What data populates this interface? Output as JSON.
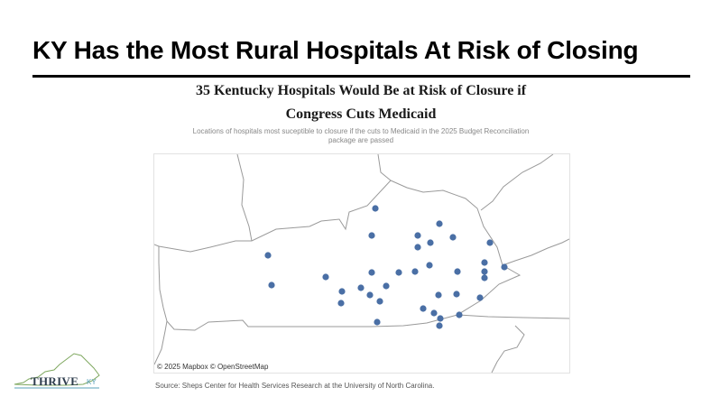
{
  "slide": {
    "title": "KY Has the Most Rural Hospitals At Risk of Closing"
  },
  "map": {
    "heading_line1": "35 Kentucky Hospitals Would Be at Risk of Closure if",
    "heading_line2": "Congress Cuts Medicaid",
    "subtitle_line1": "Locations of hospitals most suceptible to closure if the cuts to Medicaid in the 2025 Budget Reconciliation",
    "subtitle_line2": "package are passed",
    "attribution": "© 2025 Mapbox © OpenStreetMap",
    "marker_color": "#4a6fa5"
  },
  "source": "Source: Sheps Center for Health Services Research at the University of North Carolina.",
  "logo": {
    "word": "THRIVE",
    "suffix": "KY",
    "accent_color": "#5aa0b9",
    "outline_color": "#7fa860"
  }
}
